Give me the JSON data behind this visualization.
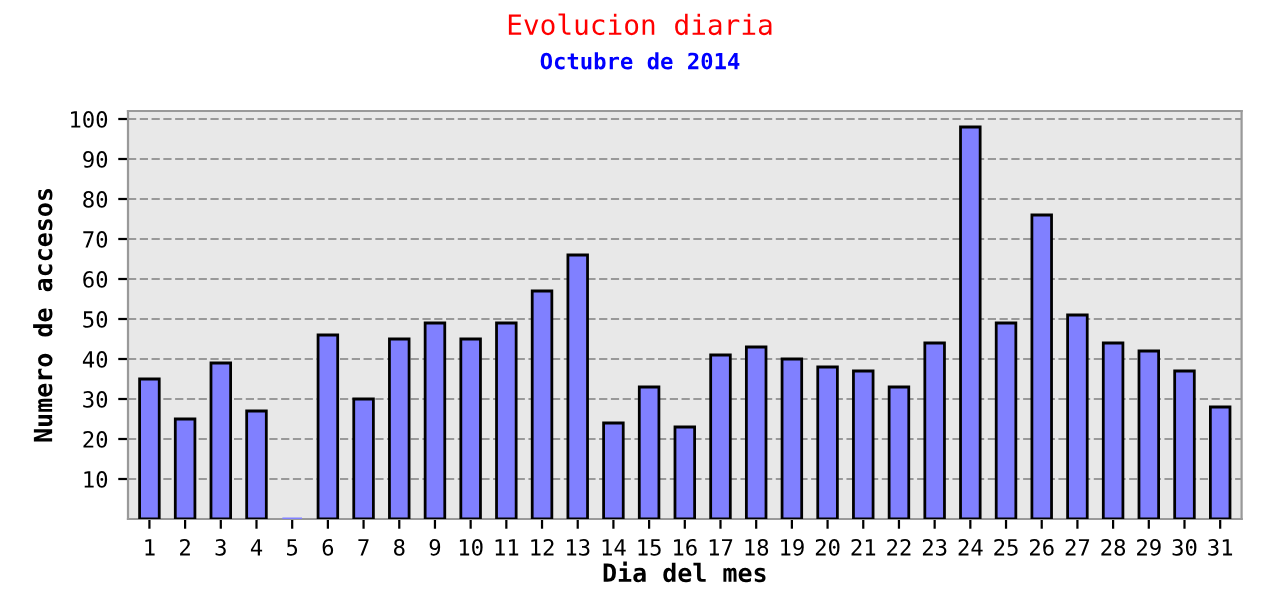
{
  "chart_data": {
    "type": "bar",
    "title": "Evolucion diaria",
    "subtitle": "Octubre de 2014",
    "xlabel": "Dia del mes",
    "ylabel": "Numero de accesos",
    "categories": [
      "1",
      "2",
      "3",
      "4",
      "5",
      "6",
      "7",
      "8",
      "9",
      "10",
      "11",
      "12",
      "13",
      "14",
      "15",
      "16",
      "17",
      "18",
      "19",
      "20",
      "21",
      "22",
      "23",
      "24",
      "25",
      "26",
      "27",
      "28",
      "29",
      "30",
      "31"
    ],
    "values": [
      35,
      25,
      39,
      27,
      0,
      46,
      30,
      45,
      49,
      45,
      49,
      57,
      66,
      24,
      33,
      23,
      41,
      43,
      40,
      38,
      37,
      33,
      44,
      98,
      49,
      76,
      51,
      44,
      42,
      37,
      28
    ],
    "color": "#8080ff",
    "ylim": [
      0,
      102
    ],
    "yticks": [
      10,
      20,
      30,
      40,
      50,
      60,
      70,
      80,
      90,
      100
    ],
    "grid": "y",
    "line_style": "dashed"
  }
}
